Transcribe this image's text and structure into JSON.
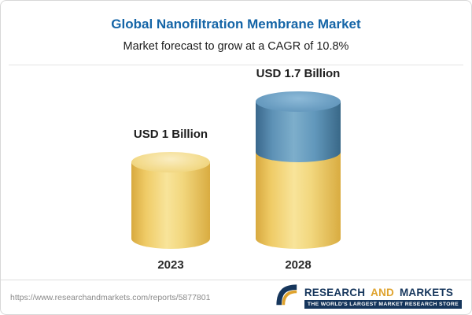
{
  "header": {
    "title": "Global Nanofiltration Membrane Market",
    "subtitle": "Market forecast to grow at a CAGR of 10.8%"
  },
  "chart_data": {
    "type": "bar",
    "title": "Global Nanofiltration Membrane Market",
    "subtitle": "Market forecast to grow at a CAGR of 10.8%",
    "categories": [
      "2023",
      "2028"
    ],
    "values": [
      1.0,
      1.7
    ],
    "value_labels": [
      "USD 1 Billion",
      "USD 1.7 Billion"
    ],
    "unit": "USD Billion",
    "ylim": [
      0,
      1.9
    ],
    "cagr_percent": 10.8,
    "series": [
      {
        "name": "base-value",
        "values": [
          1.0,
          1.0
        ],
        "color": "#f2d77e"
      },
      {
        "name": "growth-increment",
        "values": [
          0,
          0.7
        ],
        "color": "#6197bb"
      }
    ],
    "legend": "none",
    "grid": false
  },
  "footer": {
    "url": "https://www.researchandmarkets.com/reports/5877801",
    "logo": {
      "word1": "RESEARCH",
      "word2": "AND",
      "word3": "MARKETS",
      "tagline": "THE WORLD'S LARGEST MARKET RESEARCH STORE"
    }
  },
  "colors": {
    "title_blue": "#1565a7",
    "bar_yellow": "#f2d77e",
    "bar_blue": "#6197bb",
    "logo_navy": "#16365c",
    "logo_gold": "#dfa32e"
  }
}
